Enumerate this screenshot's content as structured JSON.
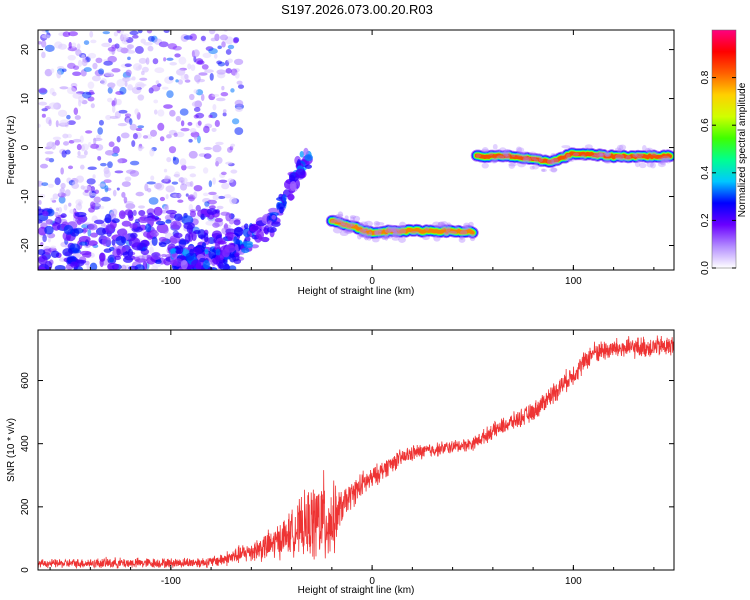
{
  "title": "S197.2026.073.00.20.R03",
  "chart_data": [
    {
      "type": "heatmap",
      "xlabel": "Height of straight line (km)",
      "ylabel": "Frequency (Hz)",
      "xlim": [
        -166,
        150
      ],
      "ylim": [
        -25,
        24
      ],
      "xticks": [
        -100,
        0,
        100
      ],
      "yticks": [
        -20,
        -10,
        0,
        10,
        20
      ],
      "colorbar": {
        "label": "Normalized spectral amplitude",
        "range": [
          0,
          1
        ],
        "ticks": [
          "0.0",
          "0.2",
          "0.4",
          "0.6",
          "0.8"
        ],
        "colors": [
          "#ffffff",
          "#b38cff",
          "#6a00ff",
          "#0000ff",
          "#00c8ff",
          "#00ff90",
          "#40ff00",
          "#d0ff00",
          "#ffd000",
          "#ff6000",
          "#ff0000",
          "#ff0080"
        ]
      },
      "features": [
        {
          "name": "noise-region",
          "x_range": [
            -166,
            -75
          ],
          "f_range": [
            -25,
            24
          ],
          "amplitude": 0.15
        },
        {
          "name": "rising-track",
          "points": [
            [
              -100,
              -23
            ],
            [
              -80,
              -23
            ],
            [
              -70,
              -20
            ],
            [
              -60,
              -18
            ],
            [
              -50,
              -16
            ],
            [
              -40,
              -8
            ],
            [
              -35,
              -3
            ]
          ],
          "amplitude": 0.25
        },
        {
          "name": "low-track",
          "points": [
            [
              -20,
              -15
            ],
            [
              -10,
              -16
            ],
            [
              0,
              -17.5
            ],
            [
              10,
              -17
            ],
            [
              30,
              -17
            ],
            [
              50,
              -17.2
            ]
          ],
          "amplitude": 0.8
        },
        {
          "name": "high-track",
          "points": [
            [
              52,
              -1.8
            ],
            [
              70,
              -1.8
            ],
            [
              80,
              -2.5
            ],
            [
              90,
              -2.8
            ],
            [
              100,
              -1.2
            ],
            [
              120,
              -1.8
            ],
            [
              148,
              -1.8
            ]
          ],
          "amplitude": 0.85
        }
      ]
    },
    {
      "type": "line",
      "xlabel": "Height of straight line (km)",
      "ylabel": "SNR (10 * v/v)",
      "xlim": [
        -166,
        150
      ],
      "ylim": [
        0,
        760
      ],
      "xticks": [
        -100,
        0,
        100
      ],
      "yticks": [
        0,
        200,
        400,
        600
      ],
      "color": "#ee3333",
      "envelope": {
        "x": [
          -166,
          -130,
          -100,
          -80,
          -70,
          -60,
          -50,
          -40,
          -30,
          -25,
          -20,
          -15,
          -10,
          -5,
          0,
          10,
          20,
          40,
          50,
          60,
          80,
          90,
          100,
          110,
          120,
          150
        ],
        "mean": [
          20,
          22,
          22,
          25,
          40,
          60,
          80,
          120,
          150,
          160,
          150,
          200,
          240,
          270,
          290,
          340,
          370,
          390,
          400,
          440,
          500,
          560,
          620,
          690,
          700,
          710
        ],
        "spread": [
          15,
          20,
          18,
          20,
          30,
          40,
          60,
          80,
          140,
          180,
          150,
          60,
          50,
          50,
          40,
          35,
          30,
          25,
          25,
          30,
          35,
          40,
          40,
          40,
          40,
          40
        ]
      }
    }
  ]
}
